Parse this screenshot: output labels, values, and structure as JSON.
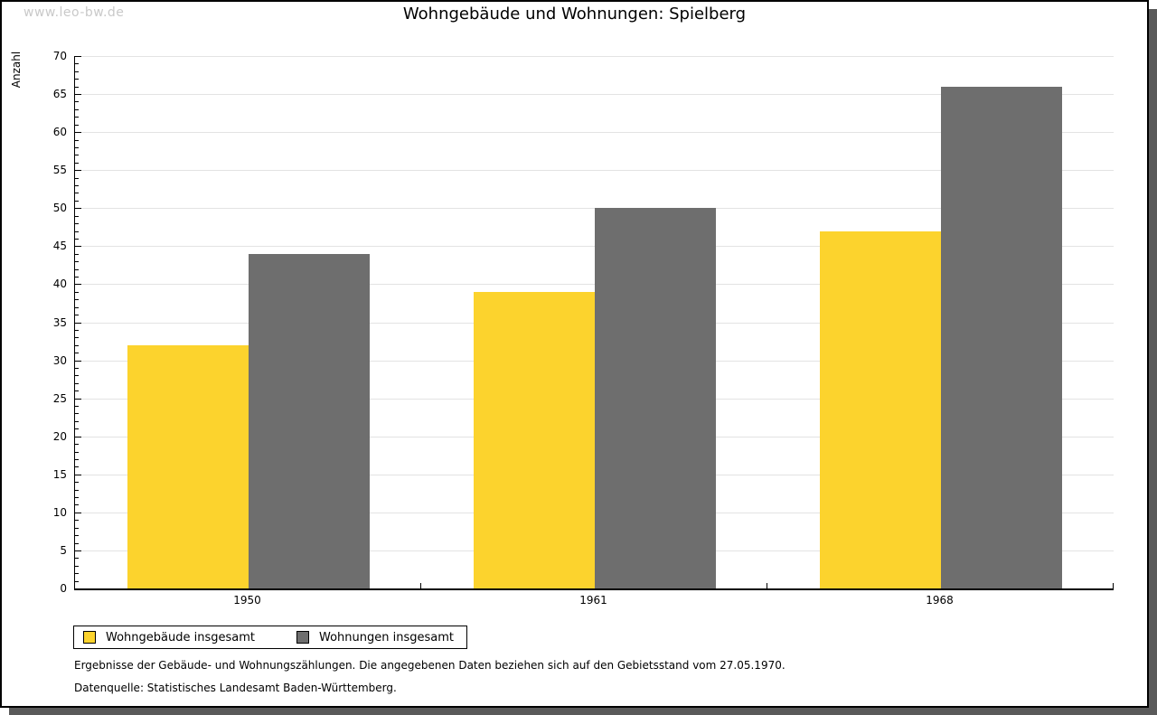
{
  "watermark": "www.leo-bw.de",
  "chart_data": {
    "type": "bar",
    "title": "Wohngebäude und Wohnungen: Spielberg",
    "categories": [
      "1950",
      "1961",
      "1968"
    ],
    "series": [
      {
        "name": "Wohngebäude insgesamt",
        "color": "#fcd32d",
        "values": [
          32,
          39,
          47
        ]
      },
      {
        "name": "Wohnungen insgesamt",
        "color": "#6e6e6e",
        "values": [
          44,
          50,
          66
        ]
      }
    ],
    "xlabel": "",
    "ylabel": "Anzahl",
    "ylim": [
      0,
      70
    ],
    "ytick_step": 5,
    "minor_tick_step": 1,
    "grid": true,
    "legend_position": "bottom-left"
  },
  "footnotes": [
    "Ergebnisse der Gebäude- und Wohnungszählungen. Die angegebenen Daten beziehen sich auf den Gebietsstand vom 27.05.1970.",
    "Datenquelle: Statistisches Landesamt Baden-Württemberg."
  ],
  "colors": {
    "series_yellow": "#fcd32d",
    "series_gray": "#6e6e6e",
    "gridline": "#e3e3e3",
    "axis": "#000000",
    "shadow": "#5a5a5a",
    "watermark": "#c9c9c9",
    "background": "#ffffff"
  }
}
